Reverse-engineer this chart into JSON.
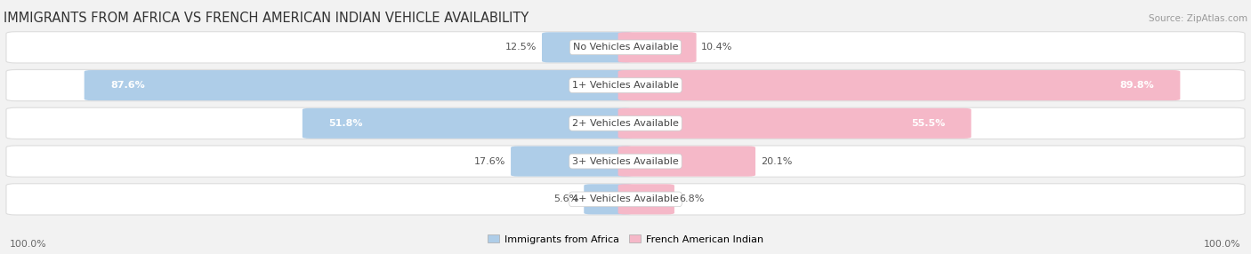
{
  "title": "IMMIGRANTS FROM AFRICA VS FRENCH AMERICAN INDIAN VEHICLE AVAILABILITY",
  "source": "Source: ZipAtlas.com",
  "categories": [
    "No Vehicles Available",
    "1+ Vehicles Available",
    "2+ Vehicles Available",
    "3+ Vehicles Available",
    "4+ Vehicles Available"
  ],
  "africa_values": [
    12.5,
    87.6,
    51.8,
    17.6,
    5.6
  ],
  "french_values": [
    10.4,
    89.8,
    55.5,
    20.1,
    6.8
  ],
  "africa_color": "#7bafd4",
  "french_color": "#f0869e",
  "africa_color_light": "#aecde8",
  "french_color_light": "#f5b8c8",
  "africa_label": "Immigrants from Africa",
  "french_label": "French American Indian",
  "background_color": "#f2f2f2",
  "bar_bg_color": "#efefef",
  "bar_border_color": "#dddddd",
  "max_value": 100.0,
  "title_fontsize": 10.5,
  "label_fontsize": 8.0,
  "value_fontsize": 8.0,
  "source_fontsize": 7.5
}
